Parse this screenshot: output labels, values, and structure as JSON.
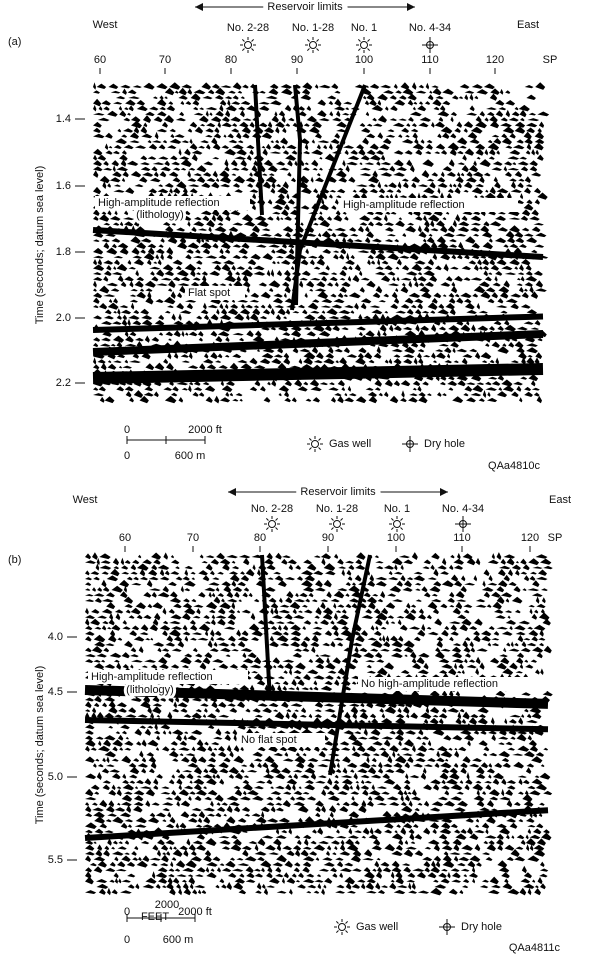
{
  "panels": [
    {
      "label": "(a)",
      "west": "West",
      "east": "East",
      "reservoir": "Reservoir limits",
      "wells": [
        "No. 2-28",
        "No. 1-28",
        "No. 1",
        "No. 4-34"
      ],
      "sp_ticks": [
        "60",
        "70",
        "80",
        "90",
        "100",
        "110",
        "120"
      ],
      "sp_label": "SP",
      "y_axis_label": "Time (seconds; datum sea level)",
      "y_ticks": [
        "1.4",
        "1.6",
        "1.8",
        "2.0",
        "2.2"
      ],
      "annotations": [
        "High-amplitude reflection",
        "(lithology)",
        "High-amplitude reflection",
        "Flat spot"
      ],
      "scale": [
        "0",
        "2000 ft",
        "0",
        "600 m"
      ],
      "legend": [
        "Gas well",
        "Dry hole"
      ],
      "code": "QAa4810c"
    },
    {
      "label": "(b)",
      "west": "West",
      "east": "East",
      "reservoir": "Reservoir limits",
      "wells": [
        "No. 2-28",
        "No. 1-28",
        "No. 1",
        "No. 4-34"
      ],
      "sp_ticks": [
        "60",
        "70",
        "80",
        "90",
        "100",
        "110",
        "120"
      ],
      "sp_label": "SP",
      "y_axis_label": "Time (seconds; datum sea level)",
      "y_ticks": [
        "4.0",
        "4.5",
        "5.0",
        "5.5"
      ],
      "annotations": [
        "High-amplitude reflection",
        "(lithology)",
        "No high-amplitude reflection",
        "No flat spot"
      ],
      "scale": [
        "0",
        "2000 ft",
        "0",
        "600 m",
        "2000",
        "FEET"
      ],
      "legend": [
        "Gas well",
        "Dry hole"
      ],
      "code": "QAa4811c"
    }
  ]
}
